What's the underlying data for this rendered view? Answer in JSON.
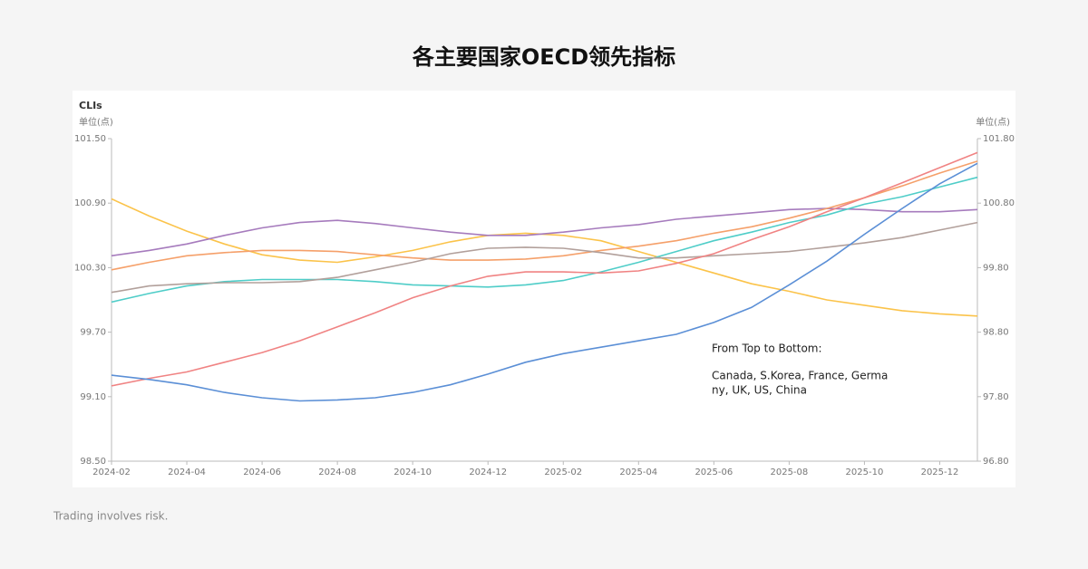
{
  "chart_data": {
    "type": "line",
    "title": "各主要国家OECD领先指标",
    "subtitle": "CLIs",
    "y_label": "单位(点)",
    "y2_label": "单位(点)",
    "annotations": [
      "From Top to Bottom:",
      "Canada, S.Korea, France, Germa",
      "ny, UK, US, China"
    ],
    "categories": [
      "2024-02",
      null,
      "2024-04",
      null,
      "2024-06",
      null,
      "2024-08",
      null,
      "2024-10",
      null,
      "2024-12",
      null,
      "2025-02",
      null,
      "2025-04",
      null,
      "2025-06",
      null,
      "2025-08",
      null,
      "2025-10",
      null,
      "2025-12",
      null
    ],
    "ylim": [
      98.5,
      101.5
    ],
    "yticks": [
      {
        "value": 98.5,
        "label": "98.50"
      },
      {
        "value": 99.1,
        "label": "99.10"
      },
      {
        "value": 99.7,
        "label": "99.70"
      },
      {
        "value": 100.3,
        "label": "100.30"
      },
      {
        "value": 100.9,
        "label": "100.90"
      },
      {
        "value": 101.5,
        "label": "101.50"
      }
    ],
    "y2lim": [
      96.8,
      101.8
    ],
    "y2ticks": [
      {
        "value": 96.8,
        "label": "96.80"
      },
      {
        "value": 97.8,
        "label": "97.80"
      },
      {
        "value": 98.8,
        "label": "98.80"
      },
      {
        "value": 99.8,
        "label": "99.80"
      },
      {
        "value": 100.8,
        "label": "100.80"
      },
      {
        "value": 101.8,
        "label": "101.80"
      }
    ],
    "series": [
      {
        "color": "#fbc34a",
        "values": [
          100.94,
          100.78,
          100.64,
          100.52,
          100.42,
          100.37,
          100.35,
          100.4,
          100.46,
          100.54,
          100.6,
          100.62,
          100.6,
          100.55,
          100.45,
          100.35,
          100.25,
          100.15,
          100.08,
          100.0,
          99.95,
          99.9,
          99.87,
          99.85
        ]
      },
      {
        "color": "#a67bbd",
        "values": [
          100.41,
          100.46,
          100.52,
          100.6,
          100.67,
          100.72,
          100.74,
          100.71,
          100.67,
          100.63,
          100.6,
          100.6,
          100.63,
          100.67,
          100.7,
          100.75,
          100.78,
          100.81,
          100.84,
          100.85,
          100.84,
          100.82,
          100.82,
          100.84
        ]
      },
      {
        "color": "#f5a06a",
        "values": [
          100.28,
          100.35,
          100.41,
          100.44,
          100.46,
          100.46,
          100.45,
          100.42,
          100.39,
          100.37,
          100.37,
          100.38,
          100.41,
          100.46,
          100.5,
          100.55,
          100.62,
          100.68,
          100.76,
          100.85,
          100.95,
          101.06,
          101.18,
          101.29
        ]
      },
      {
        "color": "#4fcdc8",
        "values": [
          99.98,
          100.06,
          100.13,
          100.17,
          100.19,
          100.19,
          100.19,
          100.17,
          100.14,
          100.13,
          100.12,
          100.14,
          100.18,
          100.26,
          100.35,
          100.45,
          100.55,
          100.63,
          100.72,
          100.79,
          100.89,
          100.96,
          101.05,
          101.14
        ]
      },
      {
        "color": "#b2a09b",
        "values": [
          100.07,
          100.13,
          100.15,
          100.16,
          100.16,
          100.17,
          100.21,
          100.28,
          100.35,
          100.43,
          100.48,
          100.49,
          100.48,
          100.44,
          100.39,
          100.39,
          100.41,
          100.43,
          100.45,
          100.49,
          100.53,
          100.58,
          100.65,
          100.72
        ]
      },
      {
        "color": "#f08383",
        "values": [
          99.2,
          99.27,
          99.33,
          99.42,
          99.51,
          99.62,
          99.75,
          99.88,
          100.02,
          100.13,
          100.22,
          100.26,
          100.26,
          100.25,
          100.27,
          100.34,
          100.43,
          100.56,
          100.68,
          100.82,
          100.95,
          101.09,
          101.23,
          101.37
        ]
      },
      {
        "color": "#5b8fd6",
        "values": [
          99.3,
          99.26,
          99.21,
          99.14,
          99.09,
          99.06,
          99.07,
          99.09,
          99.14,
          99.21,
          99.31,
          99.42,
          99.5,
          99.56,
          99.62,
          99.68,
          99.79,
          99.93,
          100.14,
          100.36,
          100.61,
          100.85,
          101.08,
          101.27
        ]
      }
    ]
  },
  "footer": "Trading involves risk."
}
